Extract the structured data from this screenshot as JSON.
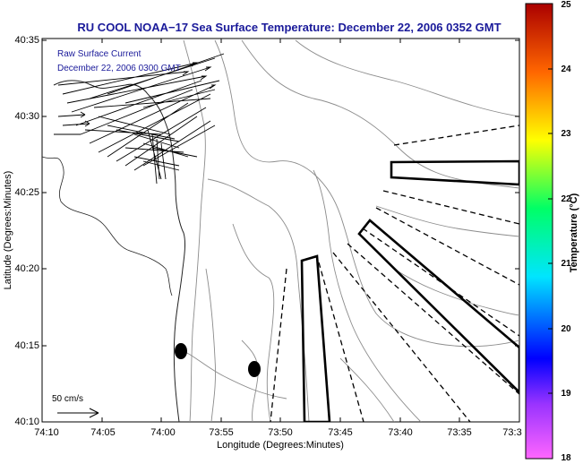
{
  "title": "RU COOL  NOAA−17  Sea Surface Temperature:  December 22, 2006 0352 GMT",
  "annotations": {
    "currents_label": "Raw Surface Current",
    "currents_time": "December 22, 2006 0300 GMT",
    "scale_label": "50 cm/s"
  },
  "axes": {
    "xlabel": "Longitude (Degrees:Minutes)",
    "ylabel": "Latitude (Degrees:Minutes)",
    "xticks": [
      "74:10",
      "74:05",
      "74:00",
      "73:55",
      "73:50",
      "73:45",
      "73:40",
      "73:35",
      "73:3"
    ],
    "yticks": [
      "40:35",
      "40:30",
      "40:25",
      "40:20",
      "40:15",
      "40:10"
    ]
  },
  "colorbar": {
    "label": "Temperature (°C)",
    "ticks": [
      "25",
      "24",
      "23",
      "22",
      "21",
      "20",
      "19",
      "18"
    ],
    "range": [
      18,
      25
    ]
  },
  "colors": {
    "title": "#1a1a9a",
    "annotation": "#1a1a9a",
    "lines": "#000000",
    "contours": "#8c8c8c"
  }
}
